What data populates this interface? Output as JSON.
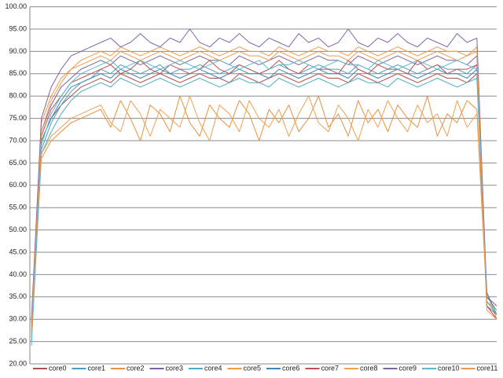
{
  "chart_data": {
    "type": "line",
    "grid": true,
    "legend": "bottom",
    "ylim": [
      20,
      100
    ],
    "yticks": [
      {
        "value": 20,
        "label": "20.00"
      },
      {
        "value": 25,
        "label": "25.00"
      },
      {
        "value": 30,
        "label": "30.00"
      },
      {
        "value": 35,
        "label": "35.00"
      },
      {
        "value": 40,
        "label": "40.00"
      },
      {
        "value": 45,
        "label": "45.00"
      },
      {
        "value": 50,
        "label": "50.00"
      },
      {
        "value": 55,
        "label": "55.00"
      },
      {
        "value": 60,
        "label": "60.00"
      },
      {
        "value": 65,
        "label": "65.00"
      },
      {
        "value": 70,
        "label": "70.00"
      },
      {
        "value": 75,
        "label": "75.00"
      },
      {
        "value": 80,
        "label": "80.00"
      },
      {
        "value": 85,
        "label": "85.00"
      },
      {
        "value": 90,
        "label": "90.00"
      },
      {
        "value": 95,
        "label": "95.00"
      },
      {
        "value": 100,
        "label": "100.00"
      }
    ],
    "series": [
      {
        "name": "core0",
        "color": "#B0504D",
        "values": [
          28,
          70,
          75,
          78,
          80,
          82,
          83,
          84,
          83,
          85,
          84,
          83,
          84,
          85,
          84,
          83,
          84,
          85,
          84,
          84,
          83,
          85,
          84,
          83,
          84,
          85,
          84,
          83,
          84,
          85,
          84,
          84,
          83,
          85,
          84,
          83,
          84,
          85,
          84,
          83,
          84,
          85,
          84,
          84,
          83,
          85,
          34,
          31
        ]
      },
      {
        "name": "core1",
        "color": "#4A9CC0",
        "values": [
          27,
          68,
          74,
          78,
          81,
          83,
          84,
          86,
          85,
          87,
          86,
          85,
          86,
          87,
          85,
          86,
          86,
          87,
          86,
          85,
          86,
          87,
          86,
          85,
          86,
          87,
          86,
          85,
          86,
          87,
          86,
          86,
          85,
          87,
          86,
          85,
          86,
          87,
          86,
          85,
          86,
          87,
          86,
          86,
          85,
          87,
          35,
          32
        ]
      },
      {
        "name": "core2",
        "color": "#E8903C",
        "values": [
          26,
          66,
          70,
          72,
          74,
          75,
          76,
          77,
          73,
          79,
          75,
          70,
          78,
          76,
          72,
          80,
          74,
          71,
          78,
          75,
          73,
          79,
          76,
          70,
          77,
          74,
          78,
          72,
          75,
          80,
          73,
          76,
          71,
          79,
          74,
          77,
          72,
          78,
          75,
          73,
          80,
          71,
          76,
          74,
          79,
          77,
          36,
          30
        ]
      },
      {
        "name": "core3",
        "color": "#7A62A0",
        "values": [
          29,
          72,
          78,
          82,
          84,
          86,
          87,
          88,
          87,
          89,
          88,
          87,
          88,
          89,
          88,
          87,
          88,
          89,
          88,
          88,
          87,
          89,
          88,
          87,
          88,
          89,
          88,
          87,
          88,
          89,
          88,
          88,
          87,
          89,
          88,
          87,
          88,
          89,
          88,
          87,
          88,
          89,
          88,
          88,
          87,
          89,
          33,
          31
        ]
      },
      {
        "name": "core4",
        "color": "#4BACC6",
        "values": [
          25,
          67,
          72,
          76,
          79,
          81,
          82,
          83,
          82,
          84,
          83,
          82,
          83,
          84,
          83,
          82,
          83,
          84,
          83,
          82,
          83,
          84,
          83,
          83,
          82,
          84,
          83,
          82,
          83,
          84,
          83,
          82,
          83,
          84,
          83,
          83,
          82,
          84,
          83,
          82,
          83,
          84,
          83,
          82,
          83,
          84,
          34,
          32
        ]
      },
      {
        "name": "core5",
        "color": "#F79646",
        "values": [
          28,
          74,
          80,
          84,
          86,
          88,
          89,
          90,
          89,
          91,
          90,
          89,
          90,
          91,
          90,
          89,
          90,
          91,
          90,
          89,
          90,
          91,
          90,
          90,
          89,
          91,
          90,
          89,
          90,
          91,
          90,
          90,
          89,
          91,
          90,
          89,
          90,
          91,
          90,
          89,
          90,
          91,
          90,
          90,
          89,
          91,
          35,
          33
        ]
      },
      {
        "name": "core6",
        "color": "#3C85B5",
        "values": [
          27,
          70,
          75,
          79,
          82,
          83,
          84,
          85,
          84,
          86,
          85,
          84,
          85,
          86,
          85,
          84,
          85,
          86,
          85,
          84,
          85,
          86,
          85,
          85,
          84,
          86,
          85,
          84,
          85,
          86,
          85,
          85,
          84,
          86,
          85,
          84,
          85,
          86,
          85,
          84,
          85,
          86,
          85,
          85,
          84,
          86,
          36,
          31
        ]
      },
      {
        "name": "core7",
        "color": "#C0504D",
        "values": [
          29,
          71,
          77,
          80,
          83,
          84,
          85,
          86,
          87,
          85,
          86,
          88,
          86,
          85,
          87,
          86,
          85,
          86,
          88,
          86,
          85,
          87,
          86,
          85,
          86,
          88,
          86,
          85,
          87,
          86,
          86,
          85,
          88,
          86,
          85,
          87,
          86,
          86,
          85,
          88,
          86,
          87,
          85,
          86,
          86,
          87,
          33,
          30
        ]
      },
      {
        "name": "core8",
        "color": "#F0A050",
        "values": [
          27,
          67,
          71,
          73,
          75,
          76,
          77,
          78,
          74,
          72,
          79,
          76,
          71,
          77,
          75,
          73,
          80,
          74,
          70,
          78,
          76,
          72,
          79,
          75,
          73,
          77,
          71,
          76,
          80,
          74,
          72,
          78,
          75,
          70,
          77,
          73,
          79,
          75,
          72,
          78,
          74,
          76,
          71,
          79,
          73,
          76,
          34,
          32
        ]
      },
      {
        "name": "core9",
        "color": "#8064A2",
        "values": [
          30,
          75,
          82,
          86,
          89,
          90,
          91,
          92,
          93,
          91,
          92,
          94,
          92,
          91,
          93,
          92,
          95,
          92,
          91,
          93,
          92,
          94,
          92,
          91,
          93,
          92,
          91,
          94,
          92,
          93,
          91,
          92,
          95,
          92,
          91,
          93,
          92,
          94,
          92,
          91,
          93,
          92,
          91,
          94,
          92,
          93,
          35,
          33
        ]
      },
      {
        "name": "core10",
        "color": "#5BB8D0",
        "values": [
          24,
          69,
          76,
          80,
          83,
          85,
          86,
          87,
          88,
          86,
          87,
          88,
          87,
          86,
          87,
          88,
          87,
          86,
          87,
          88,
          87,
          86,
          87,
          88,
          86,
          87,
          87,
          88,
          87,
          86,
          87,
          88,
          87,
          87,
          86,
          88,
          87,
          86,
          87,
          88,
          87,
          86,
          87,
          88,
          87,
          86,
          34,
          31
        ]
      },
      {
        "name": "core11",
        "color": "#E89A50",
        "values": [
          28,
          72,
          79,
          83,
          86,
          87,
          88,
          89,
          88,
          90,
          89,
          88,
          89,
          90,
          89,
          88,
          89,
          90,
          89,
          88,
          89,
          90,
          89,
          89,
          88,
          90,
          89,
          88,
          89,
          90,
          89,
          89,
          88,
          90,
          89,
          88,
          89,
          90,
          89,
          88,
          89,
          90,
          89,
          88,
          89,
          90,
          32,
          30
        ]
      }
    ]
  }
}
